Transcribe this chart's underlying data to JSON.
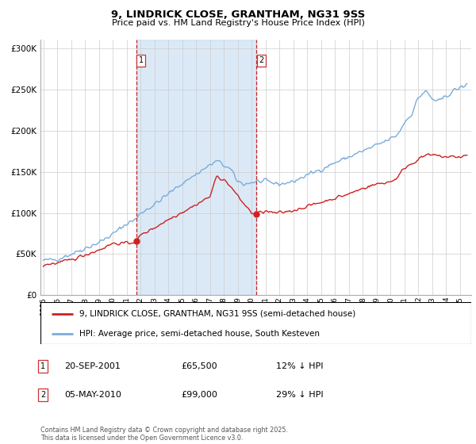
{
  "title": "9, LINDRICK CLOSE, GRANTHAM, NG31 9SS",
  "subtitle": "Price paid vs. HM Land Registry's House Price Index (HPI)",
  "ylabel_ticks": [
    "£0",
    "£50K",
    "£100K",
    "£150K",
    "£200K",
    "£250K",
    "£300K"
  ],
  "ytick_vals": [
    0,
    50000,
    100000,
    150000,
    200000,
    250000,
    300000
  ],
  "ylim": [
    0,
    310000
  ],
  "xlim_start": 1994.8,
  "xlim_end": 2025.8,
  "hpi_color": "#7aacdb",
  "price_color": "#cc2222",
  "marker1_date": 2001.72,
  "marker2_date": 2010.35,
  "marker1_price": 65500,
  "marker2_price": 99000,
  "legend1": "9, LINDRICK CLOSE, GRANTHAM, NG31 9SS (semi-detached house)",
  "legend2": "HPI: Average price, semi-detached house, South Kesteven",
  "annotation1_date": "20-SEP-2001",
  "annotation1_price": "£65,500",
  "annotation1_pct": "12% ↓ HPI",
  "annotation2_date": "05-MAY-2010",
  "annotation2_price": "£99,000",
  "annotation2_pct": "29% ↓ HPI",
  "copyright_text": "Contains HM Land Registry data © Crown copyright and database right 2025.\nThis data is licensed under the Open Government Licence v3.0.",
  "shaded_region_start": 2001.72,
  "shaded_region_end": 2010.35,
  "background_color": "#ffffff"
}
